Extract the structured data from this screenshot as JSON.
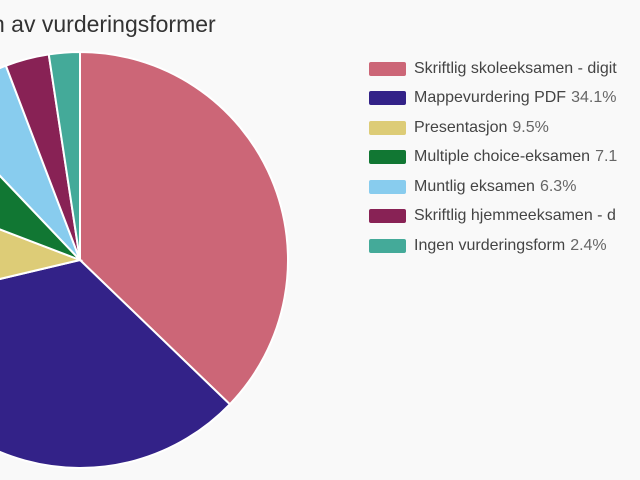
{
  "chart_data": {
    "type": "pie",
    "title": "n av vurderingsformer",
    "legend_position": "right",
    "slices": [
      {
        "label": "Skriftlig skoleeksamen - digit",
        "value": 37.2,
        "value_label": "",
        "color": "#cc6677"
      },
      {
        "label": "Mappevurdering PDF",
        "value": 34.1,
        "value_label": "34.1%",
        "color": "#332288"
      },
      {
        "label": "Presentasjon",
        "value": 9.5,
        "value_label": "9.5%",
        "color": "#ddcc77"
      },
      {
        "label": "Multiple choice-eksamen",
        "value": 7.1,
        "value_label": "7.1",
        "color": "#117733"
      },
      {
        "label": "Muntlig eksamen",
        "value": 6.3,
        "value_label": "6.3%",
        "color": "#88ccee"
      },
      {
        "label": "Skriftlig hjemmeeksamen - d",
        "value": 3.4,
        "value_label": "",
        "color": "#882255"
      },
      {
        "label": "Ingen vurderingsform",
        "value": 2.4,
        "value_label": "2.4%",
        "color": "#44aa99"
      }
    ]
  }
}
